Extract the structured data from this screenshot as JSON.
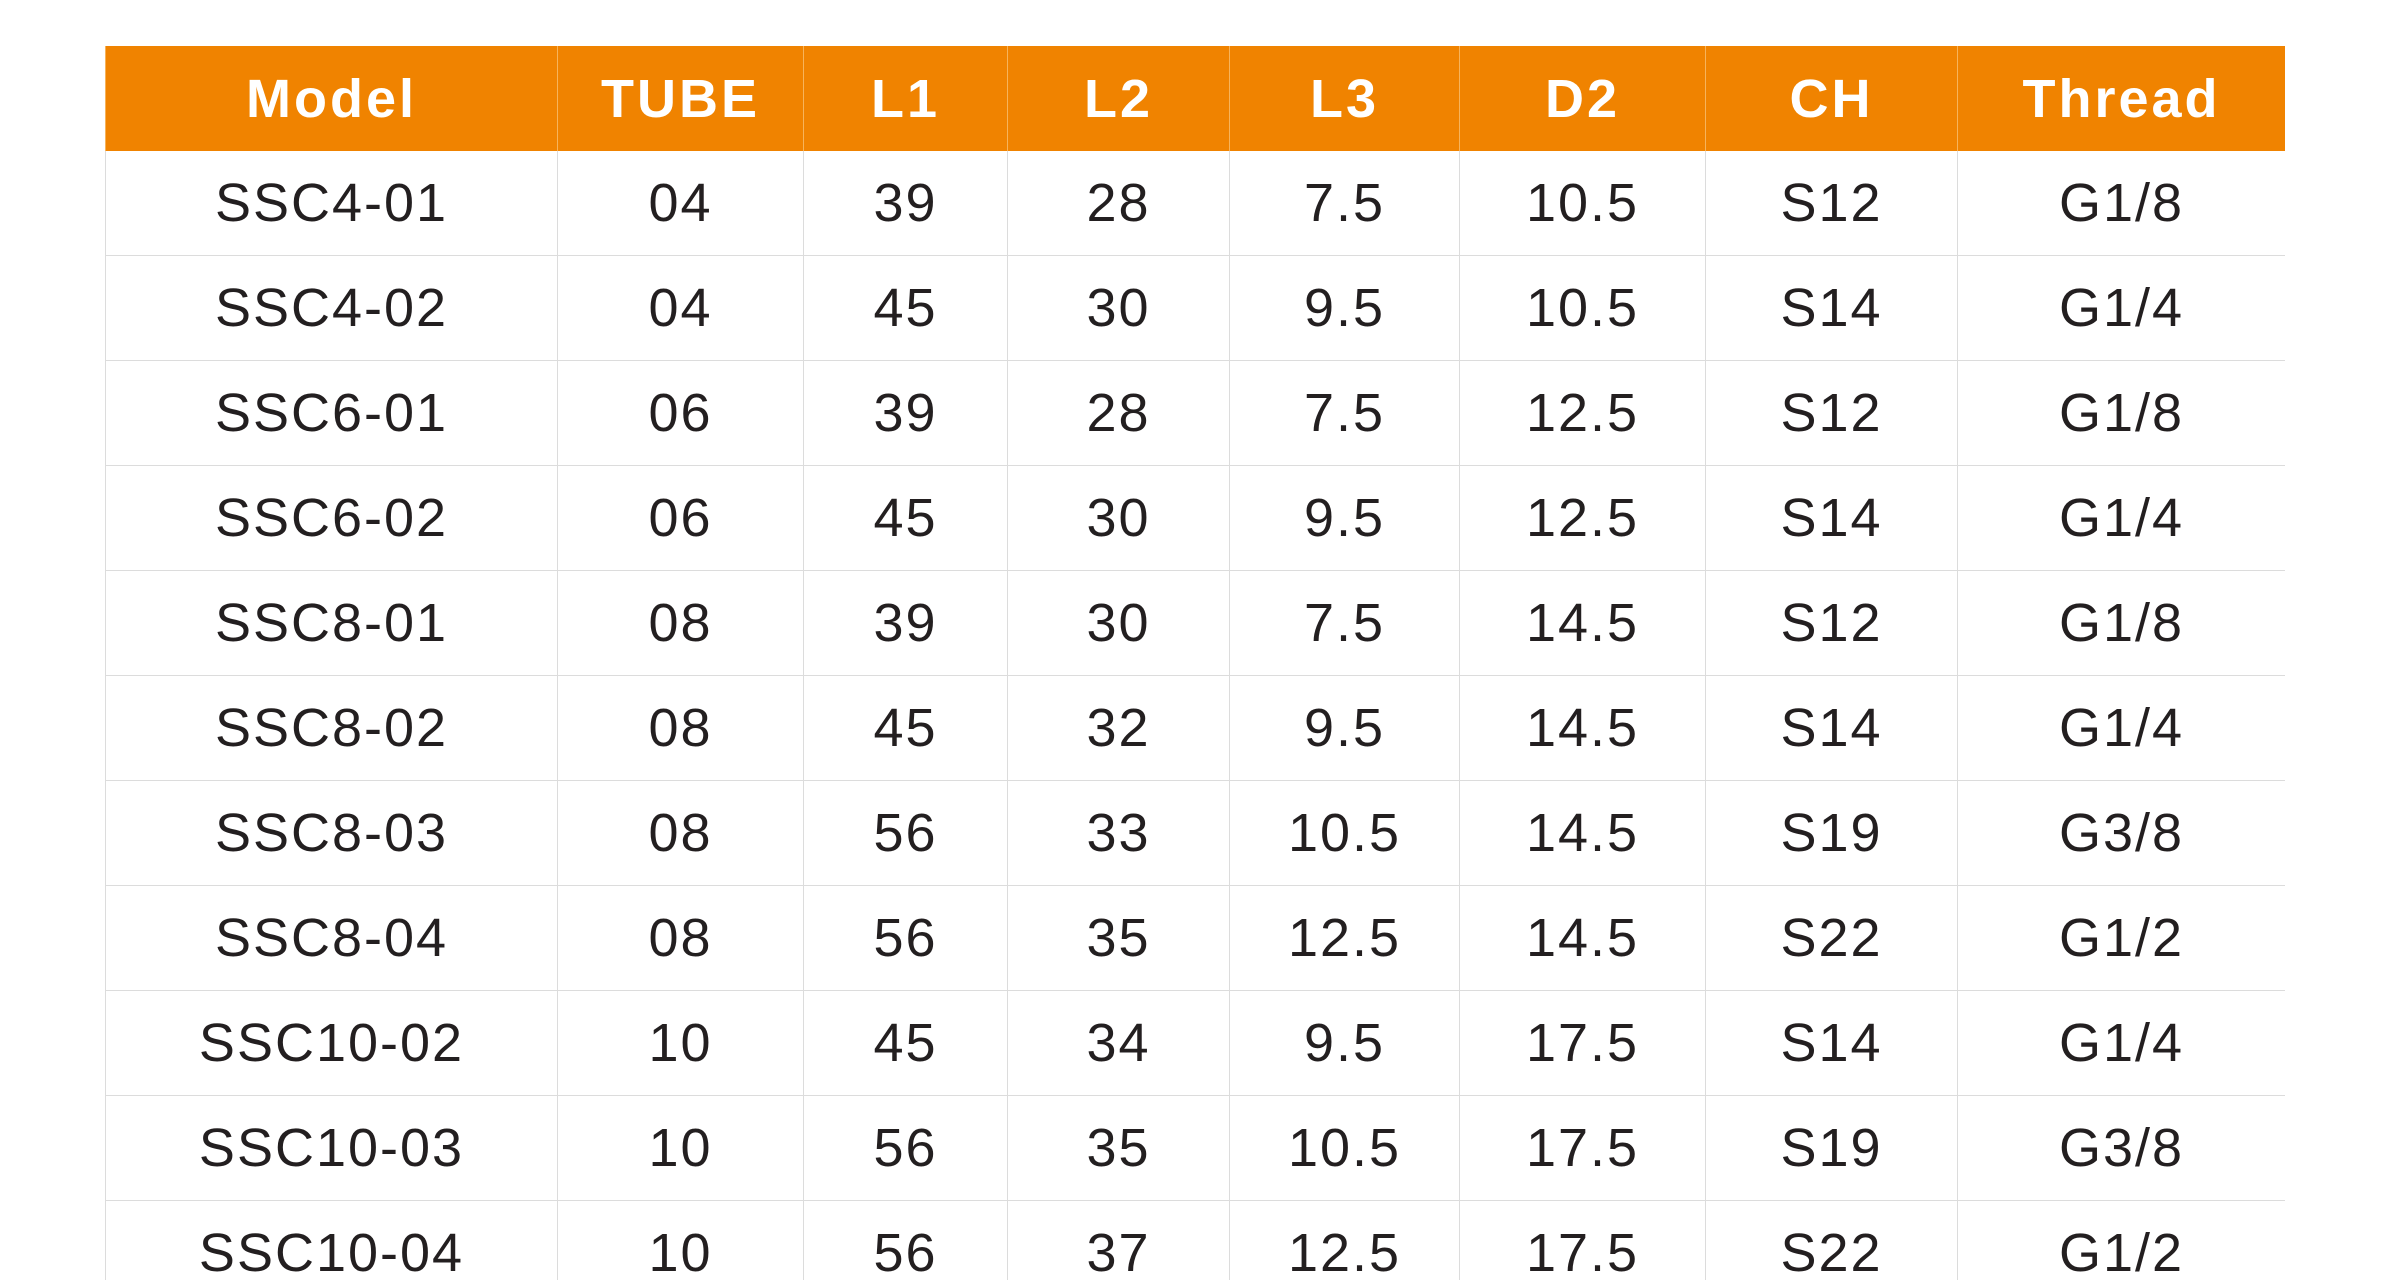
{
  "table": {
    "headers": [
      "Model",
      "TUBE",
      "L1",
      "L2",
      "L3",
      "D2",
      "CH",
      "Thread"
    ],
    "rows": [
      [
        "SSC4-01",
        "04",
        "39",
        "28",
        "7.5",
        "10.5",
        "S12",
        "G1/8"
      ],
      [
        "SSC4-02",
        "04",
        "45",
        "30",
        "9.5",
        "10.5",
        "S14",
        "G1/4"
      ],
      [
        "SSC6-01",
        "06",
        "39",
        "28",
        "7.5",
        "12.5",
        "S12",
        "G1/8"
      ],
      [
        "SSC6-02",
        "06",
        "45",
        "30",
        "9.5",
        "12.5",
        "S14",
        "G1/4"
      ],
      [
        "SSC8-01",
        "08",
        "39",
        "30",
        "7.5",
        "14.5",
        "S12",
        "G1/8"
      ],
      [
        "SSC8-02",
        "08",
        "45",
        "32",
        "9.5",
        "14.5",
        "S14",
        "G1/4"
      ],
      [
        "SSC8-03",
        "08",
        "56",
        "33",
        "10.5",
        "14.5",
        "S19",
        "G3/8"
      ],
      [
        "SSC8-04",
        "08",
        "56",
        "35",
        "12.5",
        "14.5",
        "S22",
        "G1/2"
      ],
      [
        "SSC10-02",
        "10",
        "45",
        "34",
        "9.5",
        "17.5",
        "S14",
        "G1/4"
      ],
      [
        "SSC10-03",
        "10",
        "56",
        "35",
        "10.5",
        "17.5",
        "S19",
        "G3/8"
      ],
      [
        "SSC10-04",
        "10",
        "56",
        "37",
        "12.5",
        "17.5",
        "S22",
        "G1/2"
      ]
    ]
  },
  "colors": {
    "header_bg": "#f08300",
    "header_text": "#ffffff",
    "cell_text": "#231f20",
    "grid_line": "#dcdcdc"
  }
}
